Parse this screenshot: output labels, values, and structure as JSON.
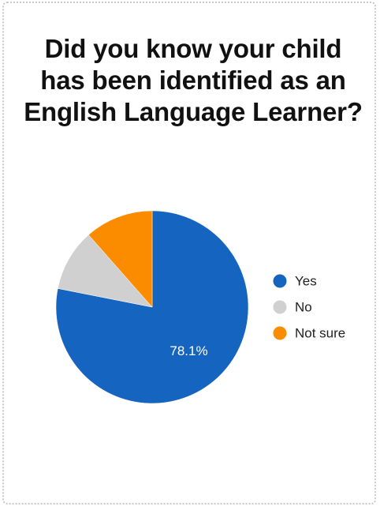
{
  "chart_data": {
    "type": "pie",
    "title": "Did you know your child has been identified as an English Language Learner?",
    "categories": [
      "Yes",
      "No",
      "Not sure"
    ],
    "values": [
      78.1,
      10.4,
      11.5
    ],
    "data_labels": [
      "78.1%",
      "",
      ""
    ],
    "colors": [
      "#1565c0",
      "#d0d0d0",
      "#fb8c00"
    ],
    "legend_position": "right"
  }
}
